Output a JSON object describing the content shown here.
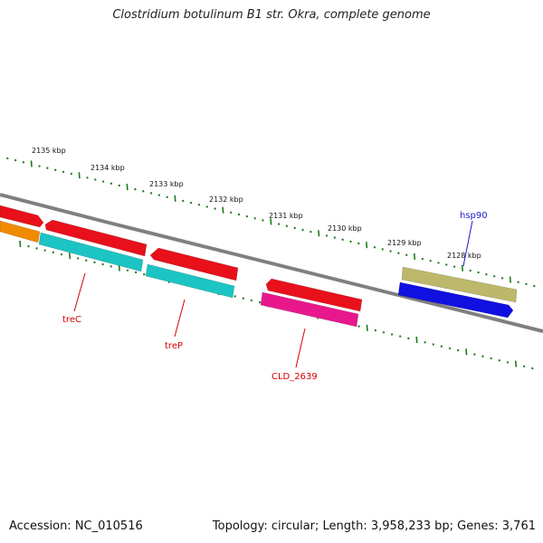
{
  "title": "Clostridium botulinum B1 str. Okra, complete genome",
  "footer": {
    "accession": "Accession: NC_010516",
    "stats": "Topology: circular; Length: 3,958,233 bp; Genes: 3,761"
  },
  "ruler": {
    "tick_labels": [
      "2135 kbp",
      "2134 kbp",
      "2133 kbp",
      "2132 kbp",
      "2131 kbp",
      "2130 kbp",
      "2129 kbp",
      "2128 kbp"
    ],
    "color": "#1f7a1f"
  },
  "backbone_color": "#7f7f7f",
  "genes": [
    {
      "label": "",
      "color": "#e8101a",
      "strand": "forward"
    },
    {
      "label": "",
      "color": "#f08a00",
      "strand": "reverse"
    },
    {
      "label": "",
      "color": "#e8101a",
      "strand": "forward"
    },
    {
      "label": "treC",
      "color": "#1cc4c4",
      "strand": "reverse",
      "label_color": "#d40000"
    },
    {
      "label": "",
      "color": "#e8101a",
      "strand": "forward"
    },
    {
      "label": "treP",
      "color": "#1cc4c4",
      "strand": "reverse",
      "label_color": "#d40000"
    },
    {
      "label": "",
      "color": "#e8101a",
      "strand": "forward"
    },
    {
      "label": "CLD_2639",
      "color": "#e8188c",
      "strand": "reverse",
      "label_color": "#d40000"
    },
    {
      "label": "hsp90",
      "color": "#bdb76b",
      "strand": "forward",
      "label_color": "#1a1acc"
    },
    {
      "label": "",
      "color": "#1010e0",
      "strand": "forward"
    }
  ]
}
